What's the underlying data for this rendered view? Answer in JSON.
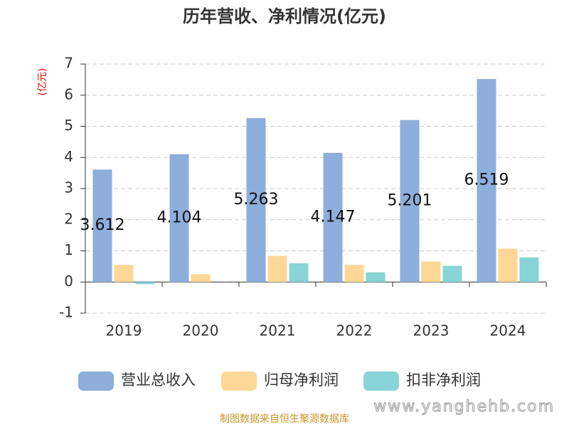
{
  "chart_data": {
    "type": "bar",
    "title": "历年营收、净利情况(亿元)",
    "y_label": "(亿元)",
    "categories": [
      "2019",
      "2020",
      "2021",
      "2022",
      "2023",
      "2024"
    ],
    "series": [
      {
        "name": "营业总收入",
        "color": "#8eaedb",
        "values": [
          3.612,
          4.104,
          5.263,
          4.147,
          5.201,
          6.519
        ]
      },
      {
        "name": "归母净利润",
        "color": "#fdd795",
        "values": [
          0.55,
          0.25,
          0.84,
          0.55,
          0.66,
          1.07
        ]
      },
      {
        "name": "扣非净利润",
        "color": "#88d4d7",
        "values": [
          -0.07,
          0,
          0.6,
          0.31,
          0.52,
          0.79
        ]
      }
    ],
    "ylim": [
      -1,
      7
    ],
    "yticks": [
      -1,
      0,
      1,
      2,
      3,
      4,
      5,
      6,
      7
    ],
    "grid": true,
    "source": "制图数据来自恒生聚源数据库",
    "watermark": "www.yanghehb.com"
  }
}
